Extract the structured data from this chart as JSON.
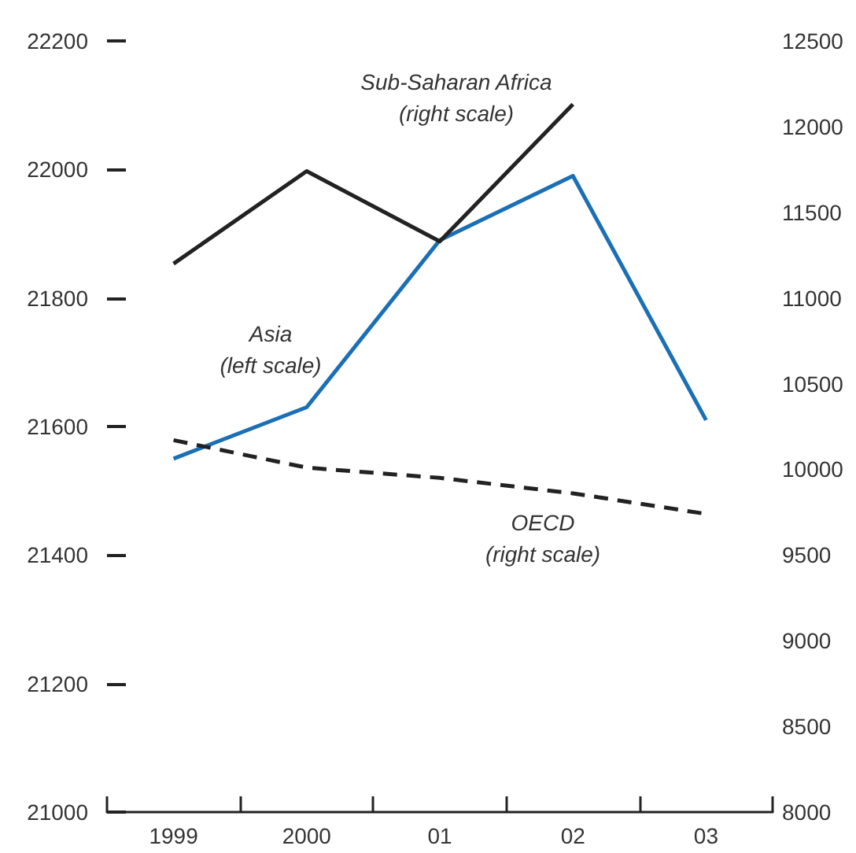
{
  "chart_data": {
    "type": "line",
    "categories": [
      "1999",
      "2000",
      "01",
      "02",
      "03"
    ],
    "series": [
      {
        "name": "Asia",
        "color": "#1a6fb5",
        "values": [
          21550,
          21630,
          21890,
          21990,
          21610
        ]
      },
      {
        "name": "Sub-Saharan Africa",
        "color": "#222222",
        "axis": "y2",
        "values": [
          11200,
          11740,
          11330,
          12130,
          null
        ]
      },
      {
        "name": "OECD",
        "color": "#222222",
        "axis": "y2",
        "line_style": "dashed",
        "values": [
          10170,
          10010,
          9950,
          9860,
          9740
        ]
      }
    ],
    "annotations": [
      "(left scale)",
      "(right scale)",
      "(right scale)"
    ],
    "ylim": [
      21000,
      22200
    ],
    "yticks": [
      21000,
      21200,
      21400,
      21600,
      21800,
      22000,
      22200
    ],
    "y2lim": [
      8000,
      12500
    ],
    "y2ticks": [
      8000,
      8500,
      9000,
      9500,
      10000,
      10500,
      11000,
      11500,
      12000,
      12500
    ],
    "grid": false,
    "legend": false,
    "marker": "none"
  }
}
